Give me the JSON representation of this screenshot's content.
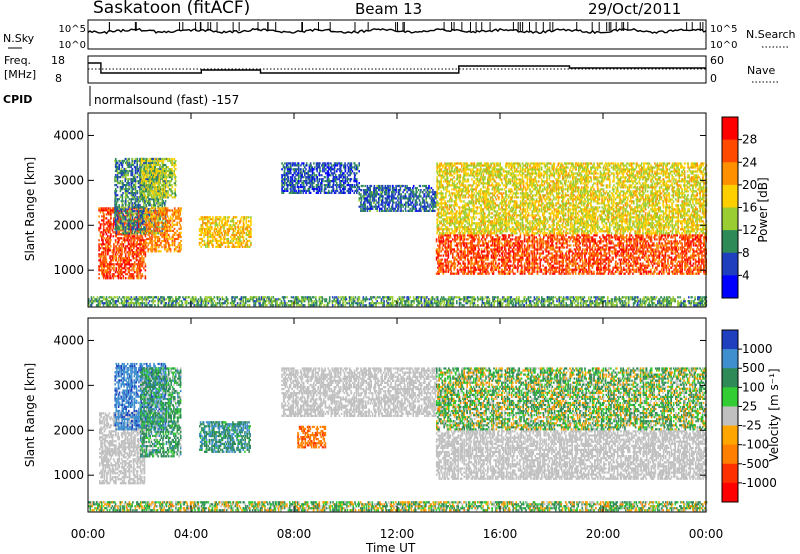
{
  "header": {
    "site": "Saskatoon (fitACF)",
    "beam": "Beam 13",
    "date": "29/Oct/2011"
  },
  "panels": {
    "noise": {
      "left_label": "N.Sky",
      "right_label": "N.Search",
      "left_ticks": [
        "10^5",
        "10^0"
      ],
      "right_ticks": [
        "10^5",
        "10^0"
      ]
    },
    "freq": {
      "left_label_line1": "Freq.",
      "left_label_line2": "[MHz]",
      "right_label": "Nave",
      "left_ticks": [
        "18",
        "8"
      ],
      "right_ticks": [
        "60",
        "0"
      ]
    },
    "cpid": {
      "label": "CPID",
      "text": "normalsound (fast) -157"
    }
  },
  "colorbars": {
    "power": {
      "title": "Power [dB]",
      "ticks": [
        "28",
        "24",
        "20",
        "16",
        "12",
        "8",
        "4"
      ],
      "colors": [
        "#ff0000",
        "#ff4a00",
        "#ff9000",
        "#ffd000",
        "#9acd32",
        "#2e8b57",
        "#1f3fbf",
        "#0000ff"
      ]
    },
    "velocity": {
      "title": "Velocity [m s⁻¹]",
      "ticks": [
        "1000",
        "500",
        "100",
        "25",
        "-25",
        "-100",
        "-500",
        "-1000"
      ],
      "colors": [
        "#1f3fbf",
        "#3f8fcf",
        "#2e8b57",
        "#32cd32",
        "#c0c0c0",
        "#ffa500",
        "#ff7f00",
        "#ff3000",
        "#ff0000"
      ]
    }
  },
  "chart_data": [
    {
      "type": "heatmap",
      "title": "Power",
      "xlabel": "Time UT",
      "ylabel": "Slant Range [km]",
      "x_ticks": [
        "00:00",
        "04:00",
        "08:00",
        "12:00",
        "16:00",
        "20:00",
        "00:00"
      ],
      "x_hours": [
        0,
        24
      ],
      "y_ticks": [
        1000,
        2000,
        3000,
        4000
      ],
      "ylim": [
        180,
        4500
      ],
      "clim": [
        0,
        30
      ],
      "units": "dB",
      "regions": [
        {
          "t0": 0.4,
          "t1": 2.2,
          "r0": 800,
          "r1": 2400,
          "v": 26
        },
        {
          "t0": 1.0,
          "t1": 3.0,
          "r0": 1800,
          "r1": 3500,
          "v": 8
        },
        {
          "t0": 2.2,
          "t1": 3.6,
          "r0": 1400,
          "r1": 2400,
          "v": 22
        },
        {
          "t0": 2.0,
          "t1": 3.4,
          "r0": 2600,
          "r1": 3500,
          "v": 14
        },
        {
          "t0": 4.3,
          "t1": 6.3,
          "r0": 1500,
          "r1": 2200,
          "v": 18
        },
        {
          "t0": 7.5,
          "t1": 10.5,
          "r0": 2700,
          "r1": 3400,
          "v": 5
        },
        {
          "t0": 10.5,
          "t1": 13.5,
          "r0": 2300,
          "r1": 2900,
          "v": 6
        },
        {
          "t0": 13.5,
          "t1": 24.0,
          "r0": 900,
          "r1": 1800,
          "v": 26
        },
        {
          "t0": 13.5,
          "t1": 24.0,
          "r0": 1800,
          "r1": 3400,
          "v": 16
        },
        {
          "t0": 0.0,
          "t1": 24.0,
          "r0": 200,
          "r1": 420,
          "v": 10
        }
      ]
    },
    {
      "type": "heatmap",
      "title": "Velocity",
      "xlabel": "Time UT",
      "ylabel": "Slant Range [km]",
      "x_ticks": [
        "00:00",
        "04:00",
        "08:00",
        "12:00",
        "16:00",
        "20:00",
        "00:00"
      ],
      "x_hours": [
        0,
        24
      ],
      "y_ticks": [
        1000,
        2000,
        3000,
        4000
      ],
      "ylim": [
        180,
        4500
      ],
      "clim": [
        -1000,
        1000
      ],
      "units": "m s-1",
      "regions": [
        {
          "t0": 0.4,
          "t1": 2.2,
          "r0": 800,
          "r1": 2400,
          "v": 0
        },
        {
          "t0": 1.0,
          "t1": 3.0,
          "r0": 2000,
          "r1": 3500,
          "v": 600
        },
        {
          "t0": 2.0,
          "t1": 3.6,
          "r0": 1400,
          "r1": 3400,
          "v": 150
        },
        {
          "t0": 4.3,
          "t1": 6.3,
          "r0": 1500,
          "r1": 2200,
          "v": 250
        },
        {
          "t0": 8.1,
          "t1": 9.2,
          "r0": 1600,
          "r1": 2100,
          "v": -400
        },
        {
          "t0": 7.5,
          "t1": 13.5,
          "r0": 2300,
          "r1": 3400,
          "v": 0
        },
        {
          "t0": 13.5,
          "t1": 24.0,
          "r0": 900,
          "r1": 2000,
          "v": 0
        },
        {
          "t0": 13.5,
          "t1": 24.0,
          "r0": 2000,
          "r1": 3400,
          "v": 60
        },
        {
          "t0": 0.0,
          "t1": 24.0,
          "r0": 200,
          "r1": 420,
          "v": 50
        }
      ]
    }
  ]
}
